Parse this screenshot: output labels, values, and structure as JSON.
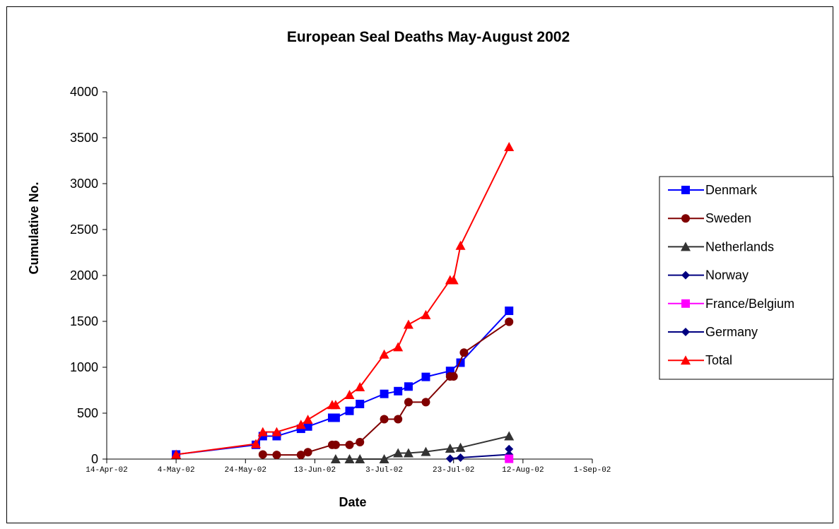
{
  "chart_data": {
    "type": "line",
    "title": "European Seal Deaths May-August 2002",
    "xlabel": "Date",
    "ylabel": "Cumulative No.",
    "x_axis": {
      "type": "date",
      "min": "2002-04-14",
      "max": "2002-09-01",
      "tick_dates": [
        "2002-04-14",
        "2002-05-04",
        "2002-05-24",
        "2002-06-13",
        "2002-07-03",
        "2002-07-23",
        "2002-08-12",
        "2002-09-01"
      ],
      "tick_labels": [
        "14-Apr-02",
        "4-May-02",
        "24-May-02",
        "13-Jun-02",
        "3-Jul-02",
        "23-Jul-02",
        "12-Aug-02",
        "1-Sep-02"
      ]
    },
    "y_axis": {
      "min": 0,
      "max": 4000,
      "step": 500,
      "tick_labels": [
        "0",
        "500",
        "1000",
        "1500",
        "2000",
        "2500",
        "3000",
        "3500",
        "4000"
      ]
    },
    "grid": false,
    "legend_position": "right",
    "series": [
      {
        "name": "Denmark",
        "color": "#0000FF",
        "marker": "square",
        "points": [
          [
            "2002-05-04",
            50
          ],
          [
            "2002-05-27",
            155
          ],
          [
            "2002-05-29",
            250
          ],
          [
            "2002-06-02",
            250
          ],
          [
            "2002-06-09",
            330
          ],
          [
            "2002-06-11",
            355
          ],
          [
            "2002-06-18",
            450
          ],
          [
            "2002-06-19",
            450
          ],
          [
            "2002-06-23",
            525
          ],
          [
            "2002-06-26",
            600
          ],
          [
            "2002-07-03",
            710
          ],
          [
            "2002-07-07",
            740
          ],
          [
            "2002-07-10",
            790
          ],
          [
            "2002-07-15",
            895
          ],
          [
            "2002-07-22",
            960
          ],
          [
            "2002-07-25",
            1050
          ],
          [
            "2002-08-08",
            1615
          ]
        ]
      },
      {
        "name": "Sweden",
        "color": "#800000",
        "marker": "circle",
        "points": [
          [
            "2002-05-29",
            50
          ],
          [
            "2002-06-02",
            45
          ],
          [
            "2002-06-09",
            45
          ],
          [
            "2002-06-11",
            75
          ],
          [
            "2002-06-18",
            155
          ],
          [
            "2002-06-19",
            155
          ],
          [
            "2002-06-23",
            155
          ],
          [
            "2002-06-26",
            185
          ],
          [
            "2002-07-03",
            435
          ],
          [
            "2002-07-07",
            435
          ],
          [
            "2002-07-10",
            620
          ],
          [
            "2002-07-15",
            620
          ],
          [
            "2002-07-22",
            900
          ],
          [
            "2002-07-23",
            900
          ],
          [
            "2002-07-26",
            1160
          ],
          [
            "2002-08-08",
            1495
          ]
        ]
      },
      {
        "name": "Netherlands",
        "color": "#333333",
        "marker": "triangle",
        "points": [
          [
            "2002-06-19",
            0
          ],
          [
            "2002-06-23",
            0
          ],
          [
            "2002-06-26",
            0
          ],
          [
            "2002-07-03",
            0
          ],
          [
            "2002-07-07",
            65
          ],
          [
            "2002-07-10",
            65
          ],
          [
            "2002-07-15",
            80
          ],
          [
            "2002-07-22",
            115
          ],
          [
            "2002-07-25",
            125
          ],
          [
            "2002-08-08",
            250
          ]
        ]
      },
      {
        "name": "Norway",
        "color": "#000080",
        "marker": "diamond",
        "points": [
          [
            "2002-07-22",
            5
          ],
          [
            "2002-07-25",
            15
          ],
          [
            "2002-08-08",
            50
          ]
        ]
      },
      {
        "name": "France/Belgium",
        "color": "#FF00FF",
        "marker": "square",
        "points": [
          [
            "2002-08-08",
            3
          ]
        ]
      },
      {
        "name": "Germany",
        "color": "#000080",
        "marker": "diamond",
        "points": [
          [
            "2002-08-08",
            110
          ]
        ]
      },
      {
        "name": "Total",
        "color": "#FF0000",
        "marker": "triangle",
        "points": [
          [
            "2002-05-04",
            50
          ],
          [
            "2002-05-27",
            165
          ],
          [
            "2002-05-29",
            295
          ],
          [
            "2002-06-02",
            295
          ],
          [
            "2002-06-09",
            375
          ],
          [
            "2002-06-11",
            430
          ],
          [
            "2002-06-18",
            590
          ],
          [
            "2002-06-19",
            590
          ],
          [
            "2002-06-23",
            700
          ],
          [
            "2002-06-26",
            785
          ],
          [
            "2002-07-03",
            1140
          ],
          [
            "2002-07-07",
            1220
          ],
          [
            "2002-07-10",
            1465
          ],
          [
            "2002-07-15",
            1570
          ],
          [
            "2002-07-22",
            1950
          ],
          [
            "2002-07-23",
            1950
          ],
          [
            "2002-07-25",
            2325
          ],
          [
            "2002-08-08",
            3400
          ]
        ]
      }
    ]
  }
}
